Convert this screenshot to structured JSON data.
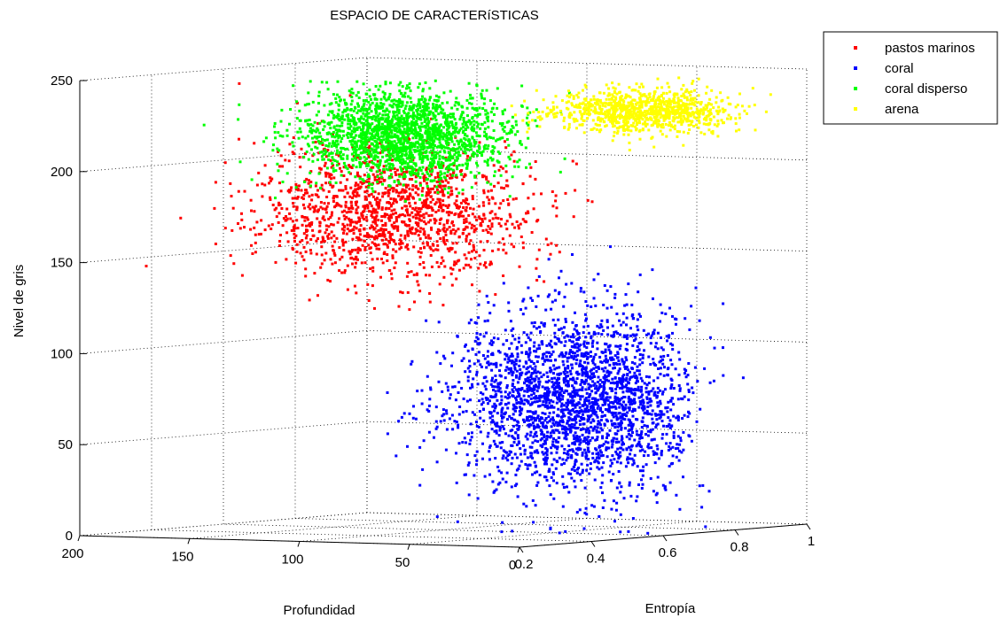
{
  "chart_data": {
    "type": "scatter",
    "dimensions": 3,
    "title": "ESPACIO DE CARACTERíSTICAS",
    "xlabel": "Entropía",
    "ylabel": "Profundidad",
    "zlabel": "Nivel de gris",
    "xlim": [
      0.2,
      1
    ],
    "ylim": [
      0,
      200
    ],
    "zlim": [
      0,
      250
    ],
    "xticks": [
      "0.2",
      "0.4",
      "0.6",
      "0.8",
      "1"
    ],
    "yticks": [
      "200",
      "150",
      "100",
      "50",
      "0"
    ],
    "zticks": [
      "0",
      "50",
      "100",
      "150",
      "200",
      "250"
    ],
    "grid": true,
    "legend_position": "top-right",
    "series": [
      {
        "name": "pastos marinos",
        "color": "#ff0000",
        "entropy_mean": 0.3,
        "entropy_sd": 0.04,
        "depth_mean": 75,
        "depth_sd": 30,
        "gray_mean": 180,
        "gray_sd": 18,
        "approx_points": 1500
      },
      {
        "name": "coral",
        "color": "#0000ff",
        "entropy_mean": 0.6,
        "entropy_sd": 0.07,
        "depth_mean": 40,
        "depth_sd": 25,
        "gray_mean": 72,
        "gray_sd": 25,
        "approx_points": 2500
      },
      {
        "name": "coral disperso",
        "color": "#00ff00",
        "entropy_mean": 0.34,
        "entropy_sd": 0.04,
        "depth_mean": 75,
        "depth_sd": 22,
        "gray_mean": 222,
        "gray_sd": 12,
        "approx_points": 2000
      },
      {
        "name": "arena",
        "color": "#ffff00",
        "entropy_mean": 0.98,
        "entropy_sd": 0.06,
        "depth_mean": 70,
        "depth_sd": 18,
        "gray_mean": 225,
        "gray_sd": 6,
        "approx_points": 1000
      }
    ]
  }
}
